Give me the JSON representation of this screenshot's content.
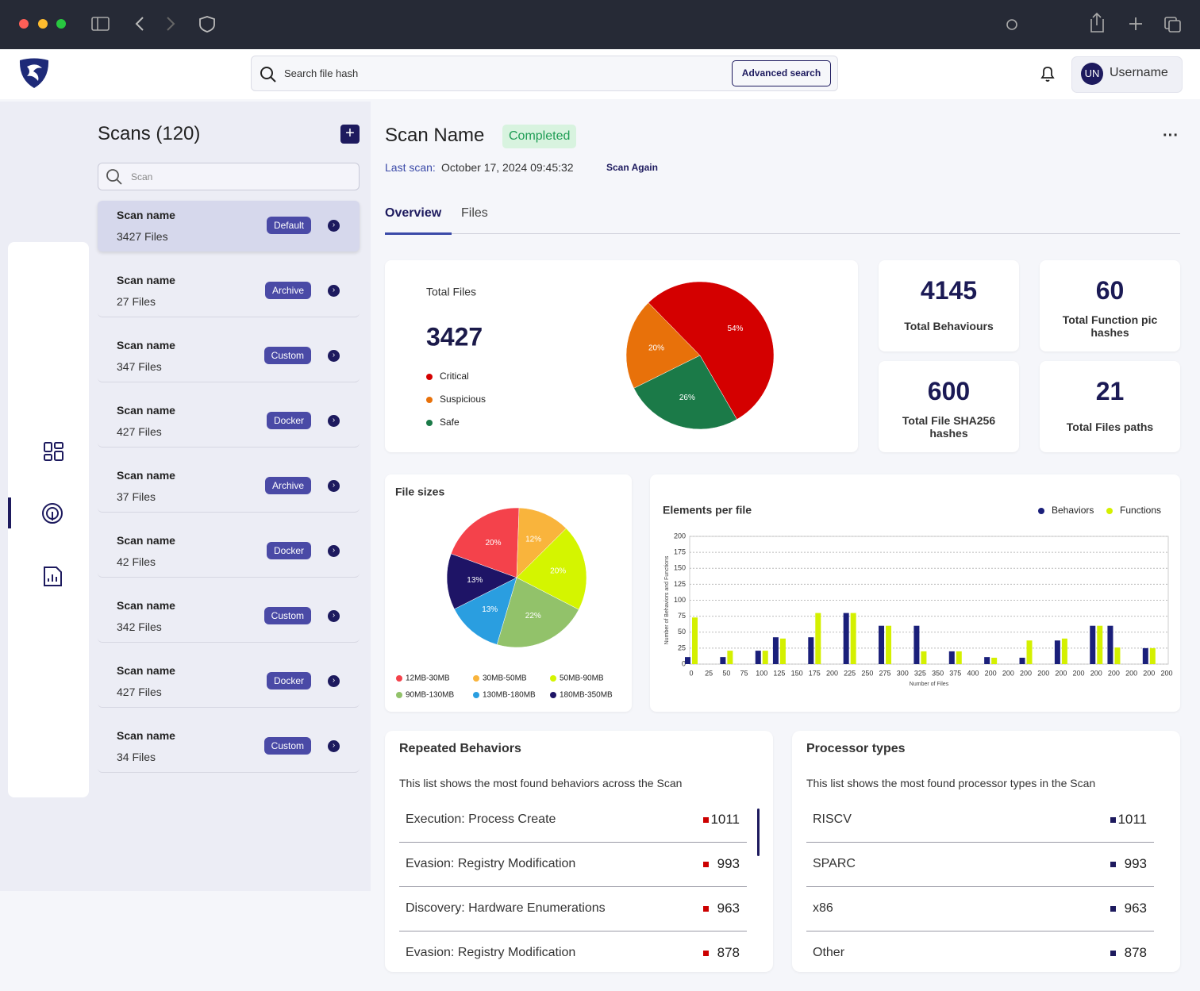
{
  "header": {
    "search_placeholder": "Search file hash",
    "advanced_search": "Advanced search",
    "avatar": "UN",
    "username": "Username"
  },
  "scans": {
    "title": "Scans (120)",
    "search_placeholder": "Scan",
    "items": [
      {
        "name": "Scan name",
        "files": "3427 Files",
        "tag": "Default"
      },
      {
        "name": "Scan name",
        "files": "27 Files",
        "tag": "Archive"
      },
      {
        "name": "Scan name",
        "files": "347 Files",
        "tag": "Custom"
      },
      {
        "name": "Scan name",
        "files": "427 Files",
        "tag": "Docker"
      },
      {
        "name": "Scan name",
        "files": "37 Files",
        "tag": "Archive"
      },
      {
        "name": "Scan name",
        "files": "42 Files",
        "tag": "Docker"
      },
      {
        "name": "Scan name",
        "files": "342 Files",
        "tag": "Custom"
      },
      {
        "name": "Scan name",
        "files": "427 Files",
        "tag": "Docker"
      },
      {
        "name": "Scan name",
        "files": "34 Files",
        "tag": "Custom"
      }
    ]
  },
  "scan": {
    "name": "Scan Name",
    "status": "Completed",
    "last_scan_label": "Last scan:",
    "last_scan": "October 17, 2024 09:45:32",
    "scan_again": "Scan Again",
    "tabs": [
      "Overview",
      "Files"
    ]
  },
  "stats": [
    {
      "value": 4145,
      "label": "Total Behaviours"
    },
    {
      "value": 60,
      "label": "Total Function pic hashes"
    },
    {
      "value": 600,
      "label": "Total File SHA256 hashes"
    },
    {
      "value": 21,
      "label": "Total Files paths"
    }
  ],
  "chart_data": [
    {
      "type": "pie",
      "title": "Total Files",
      "total": 3427,
      "categories": [
        "Critical",
        "Suspicious",
        "Safe"
      ],
      "values": [
        54,
        20,
        26
      ],
      "value_labels": [
        "54%",
        "20%",
        "26%"
      ],
      "colors": [
        "#d40000",
        "#e8710a",
        "#1b7a48"
      ]
    },
    {
      "type": "pie",
      "title": "File sizes",
      "categories": [
        "12MB-30MB",
        "30MB-50MB",
        "50MB-90MB",
        "90MB-130MB",
        "130MB-180MB",
        "180MB-350MB"
      ],
      "values": [
        20,
        12,
        20,
        22,
        13,
        13
      ],
      "value_labels": [
        "20%",
        "12%",
        "20%",
        "22%",
        "13%",
        "13%"
      ],
      "colors": [
        "#f4424b",
        "#f9b43c",
        "#d4f500",
        "#92c26a",
        "#2a9ee0",
        "#1e1466"
      ]
    },
    {
      "type": "bar",
      "title": "Elements per file",
      "xlabel": "Number of Files",
      "ylabel": "Number of Behaviors and Functions",
      "categories": [
        "0",
        "25",
        "50",
        "75",
        "100",
        "125",
        "150",
        "175",
        "200",
        "225",
        "250",
        "275",
        "300",
        "325",
        "350",
        "375",
        "400",
        "200",
        "200",
        "200",
        "200",
        "200",
        "200",
        "200",
        "200",
        "200",
        "200",
        "200"
      ],
      "series": [
        {
          "name": "Behaviors",
          "color": "#1a1f7a",
          "values": [
            11,
            null,
            11,
            null,
            21,
            42,
            null,
            42,
            null,
            80,
            null,
            60,
            null,
            60,
            null,
            20,
            null,
            11,
            null,
            10,
            null,
            37,
            null,
            60,
            60,
            null,
            25,
            null
          ]
        },
        {
          "name": "Functions",
          "color": "#d4f000",
          "values": [
            73,
            null,
            21,
            null,
            21,
            40,
            null,
            80,
            null,
            80,
            null,
            60,
            null,
            20,
            null,
            20,
            null,
            10,
            null,
            37,
            null,
            40,
            null,
            60,
            26,
            null,
            25,
            null
          ]
        }
      ],
      "ylim": [
        0,
        200
      ],
      "yticks": [
        0,
        25,
        50,
        75,
        100,
        125,
        150,
        175,
        200
      ],
      "grid": true,
      "legend": "top-right"
    }
  ],
  "repeated_behaviors": {
    "title": "Repeated Behaviors",
    "description": "This list shows the most found behaviors across the Scan",
    "items": [
      {
        "label": "Execution: Process Create",
        "value": 1011
      },
      {
        "label": "Evasion: Registry Modification",
        "value": 993
      },
      {
        "label": "Discovery: Hardware Enumerations",
        "value": 963
      },
      {
        "label": "Evasion: Registry Modification",
        "value": 878
      }
    ]
  },
  "processor_types": {
    "title": "Processor types",
    "description": "This list shows the most found processor types in the Scan",
    "items": [
      {
        "label": "RISCV",
        "value": 1011
      },
      {
        "label": "SPARC",
        "value": 993
      },
      {
        "label": "x86",
        "value": 963
      },
      {
        "label": "Other",
        "value": 878
      }
    ]
  }
}
